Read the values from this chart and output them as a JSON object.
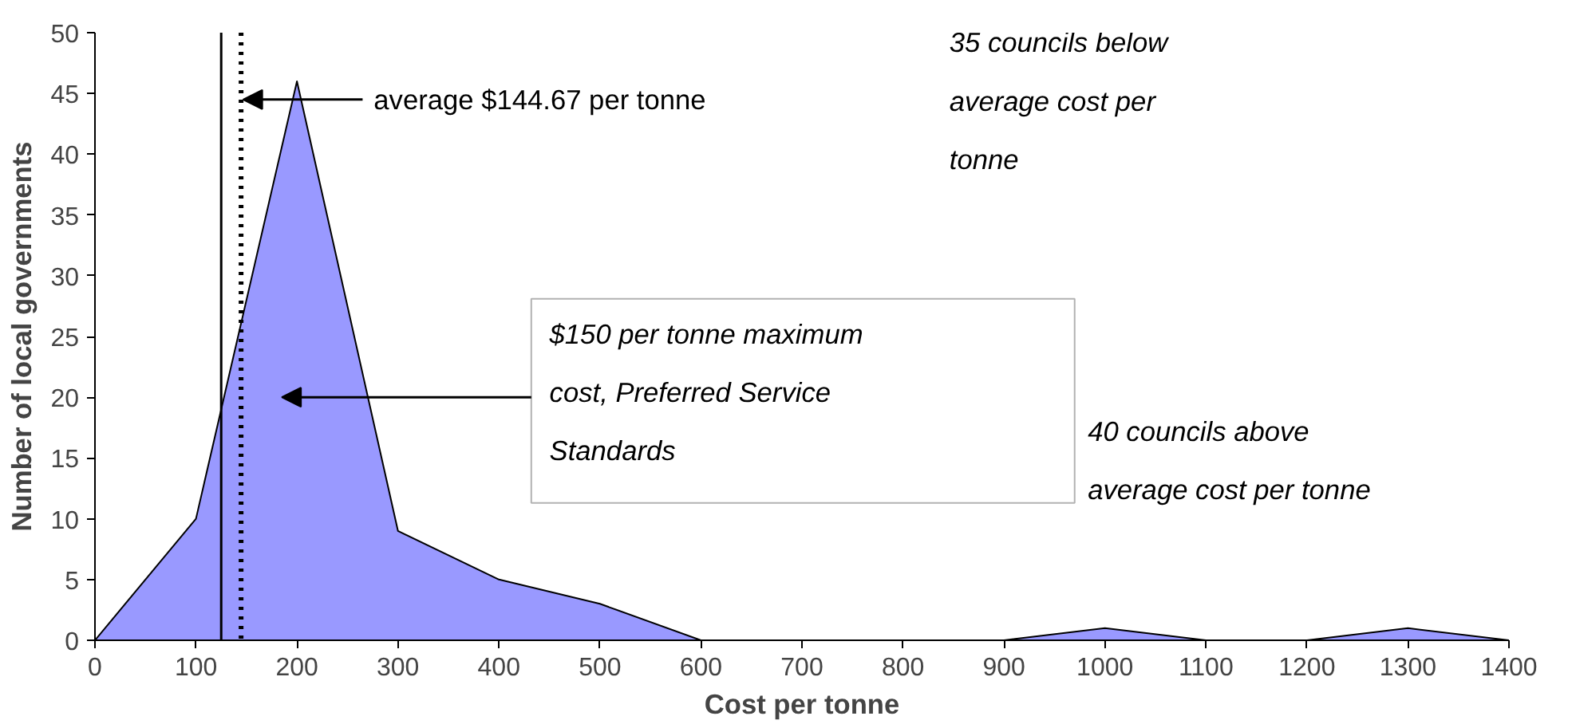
{
  "chart_data": {
    "type": "area",
    "xlabel": "Cost per tonne",
    "ylabel": "Number of local governments",
    "x": [
      0,
      100,
      200,
      300,
      400,
      500,
      600,
      700,
      800,
      900,
      1000,
      1100,
      1200,
      1300,
      1400
    ],
    "series": [
      {
        "color": "#9999ff",
        "values": [
          0,
          10,
          46,
          9,
          5,
          3,
          0,
          0,
          0,
          0,
          1,
          0,
          0,
          1,
          0
        ]
      }
    ],
    "xlim": [
      0,
      1400
    ],
    "xticks": [
      0,
      100,
      200,
      300,
      400,
      500,
      600,
      700,
      800,
      900,
      1000,
      1100,
      1200,
      1300,
      1400
    ],
    "ylim": [
      0,
      50
    ],
    "yticks": [
      0,
      5,
      10,
      15,
      20,
      25,
      30,
      35,
      40,
      45,
      50
    ],
    "grid": false,
    "ref_lines": [
      {
        "axis": "x",
        "value": 125,
        "color": "#000000",
        "line_style": "solid"
      },
      {
        "axis": "x",
        "value": 144.67,
        "color": "#000000",
        "line_style": "dotted",
        "label": "average $144.67 per tonne"
      }
    ],
    "annotations": [
      "$150 per tonne maximum cost, Preferred Service Standards",
      "35 councils below average cost per tonne",
      "40 councils above average cost per tonne"
    ]
  }
}
